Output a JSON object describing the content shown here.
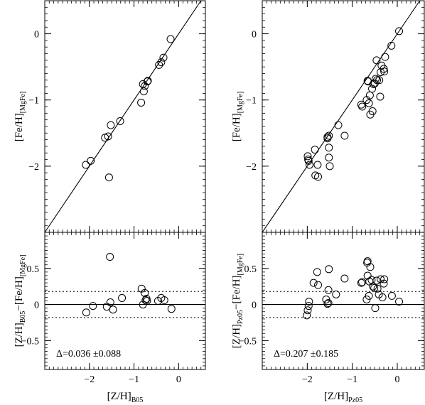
{
  "chart_data": [
    {
      "id": "b05-top",
      "type": "scatter",
      "xlim": [
        -3.0,
        0.6
      ],
      "ylim": [
        -3.0,
        0.5
      ],
      "ylabel": {
        "main": "[Fe/H]",
        "sub": "[MgFe]"
      },
      "xticks": [
        -2,
        -1,
        0
      ],
      "yticks": [
        {
          "v": 0,
          "t": "0"
        },
        {
          "v": -1,
          "t": "−1"
        },
        {
          "v": -2,
          "t": "−2"
        }
      ],
      "refline": "one-to-one",
      "points": [
        [
          -2.08,
          -1.98
        ],
        [
          -1.97,
          -1.92
        ],
        [
          -1.65,
          -1.57
        ],
        [
          -1.58,
          -1.55
        ],
        [
          -1.52,
          -1.38
        ],
        [
          -1.56,
          -2.17
        ],
        [
          -1.31,
          -1.32
        ],
        [
          -0.84,
          -1.04
        ],
        [
          -0.8,
          -0.76
        ],
        [
          -0.78,
          -0.87
        ],
        [
          -0.76,
          -0.79
        ],
        [
          -0.7,
          -0.72
        ],
        [
          -0.69,
          -0.71
        ],
        [
          -0.44,
          -0.47
        ],
        [
          -0.39,
          -0.43
        ],
        [
          -0.34,
          -0.36
        ],
        [
          -0.18,
          -0.08
        ]
      ]
    },
    {
      "id": "b05-bottom",
      "type": "scatter",
      "xlim": [
        -3.0,
        0.6
      ],
      "ylim": [
        -0.9,
        1.0
      ],
      "xlabel": {
        "main": "[Z/H]",
        "sub": "B05"
      },
      "ylabel": {
        "pre": "[Z/H]",
        "presub": "B05",
        "mid": "−[Fe/H]",
        "sub": "[MgFe]"
      },
      "xticks": [
        {
          "v": -2,
          "t": "−2"
        },
        {
          "v": -1,
          "t": "−1"
        },
        {
          "v": 0,
          "t": "0"
        }
      ],
      "yticks": [
        {
          "v": 0.5,
          "t": "0.5"
        },
        {
          "v": 0,
          "t": "0"
        },
        {
          "v": -0.5,
          "t": "−0.5"
        }
      ],
      "hlines": {
        "solid": 0.0,
        "dotted": [
          0.18,
          -0.18
        ]
      },
      "annotation": "Δ=0.036  ±0.088",
      "points": [
        [
          -2.07,
          -0.11
        ],
        [
          -1.92,
          -0.02
        ],
        [
          -1.61,
          -0.03
        ],
        [
          -1.53,
          0.03
        ],
        [
          -1.54,
          0.66
        ],
        [
          -1.47,
          -0.07
        ],
        [
          -1.27,
          0.09
        ],
        [
          -0.83,
          0.22
        ],
        [
          -0.8,
          0.0
        ],
        [
          -0.76,
          0.16
        ],
        [
          -0.74,
          0.06
        ],
        [
          -0.72,
          0.08
        ],
        [
          -0.71,
          0.05
        ],
        [
          -0.46,
          0.05
        ],
        [
          -0.39,
          0.09
        ],
        [
          -0.32,
          0.06
        ],
        [
          -0.16,
          -0.06
        ]
      ]
    },
    {
      "id": "pz05-top",
      "type": "scatter",
      "xlim": [
        -3.0,
        0.6
      ],
      "ylim": [
        -3.0,
        0.5
      ],
      "ylabel": {
        "main": "[Fe/H]",
        "sub": "[MgFe]"
      },
      "xticks": [
        -2,
        -1,
        0
      ],
      "yticks": [
        {
          "v": 0,
          "t": "0"
        },
        {
          "v": -1,
          "t": "−1"
        },
        {
          "v": -2,
          "t": "−2"
        }
      ],
      "refline": "one-to-one",
      "points": [
        [
          -1.99,
          -1.85
        ],
        [
          -1.98,
          -1.9
        ],
        [
          -1.97,
          -1.92
        ],
        [
          -1.95,
          -1.98
        ],
        [
          -1.83,
          -1.75
        ],
        [
          -1.82,
          -2.14
        ],
        [
          -1.76,
          -2.16
        ],
        [
          -1.77,
          -1.98
        ],
        [
          -1.55,
          -1.56
        ],
        [
          -1.55,
          -1.58
        ],
        [
          -1.52,
          -1.54
        ],
        [
          -1.52,
          -1.72
        ],
        [
          -1.52,
          -1.87
        ],
        [
          -1.5,
          -2.0
        ],
        [
          -1.31,
          -1.38
        ],
        [
          -1.17,
          -1.54
        ],
        [
          -0.8,
          -1.07
        ],
        [
          -0.78,
          -1.1
        ],
        [
          -0.68,
          -1.0
        ],
        [
          -0.66,
          -0.71
        ],
        [
          -0.65,
          -0.72
        ],
        [
          -0.63,
          -1.05
        ],
        [
          -0.61,
          -0.93
        ],
        [
          -0.6,
          -1.22
        ],
        [
          -0.56,
          -0.83
        ],
        [
          -0.55,
          -1.17
        ],
        [
          -0.53,
          -0.76
        ],
        [
          -0.5,
          -0.75
        ],
        [
          -0.48,
          -0.68
        ],
        [
          -0.46,
          -0.4
        ],
        [
          -0.45,
          -0.7
        ],
        [
          -0.4,
          -0.7
        ],
        [
          -0.38,
          -0.95
        ],
        [
          -0.37,
          -0.58
        ],
        [
          -0.35,
          -0.48
        ],
        [
          -0.3,
          -0.53
        ],
        [
          -0.29,
          -0.57
        ],
        [
          -0.27,
          -0.35
        ],
        [
          -0.13,
          -0.18
        ],
        [
          0.04,
          0.04
        ]
      ]
    },
    {
      "id": "pz05-bottom",
      "type": "scatter",
      "xlim": [
        -3.0,
        0.6
      ],
      "ylim": [
        -0.9,
        1.0
      ],
      "xlabel": {
        "main": "[Z/H]",
        "sub": "Pz05"
      },
      "ylabel": {
        "pre": "[Z/H]",
        "presub": "Pz05",
        "mid": "−[Fe/H]",
        "sub": "[MgFe]"
      },
      "xticks": [
        {
          "v": -2,
          "t": "−2"
        },
        {
          "v": -1,
          "t": "−1"
        },
        {
          "v": 0,
          "t": "0"
        }
      ],
      "yticks": [
        {
          "v": 0.5,
          "t": "0.5"
        },
        {
          "v": 0,
          "t": "0"
        },
        {
          "v": -0.5,
          "t": "−0.5"
        }
      ],
      "hlines": {
        "solid": 0.0,
        "dotted": [
          0.18,
          -0.18
        ]
      },
      "annotation": "Δ=0.207  ±0.185",
      "points": [
        [
          -2.01,
          -0.15
        ],
        [
          -1.99,
          -0.08
        ],
        [
          -1.97,
          -0.02
        ],
        [
          -1.96,
          0.04
        ],
        [
          -1.86,
          0.3
        ],
        [
          -1.78,
          0.45
        ],
        [
          -1.76,
          0.27
        ],
        [
          -1.58,
          0.07
        ],
        [
          -1.55,
          0.01
        ],
        [
          -1.53,
          0.02
        ],
        [
          -1.53,
          0.2
        ],
        [
          -1.52,
          0.49
        ],
        [
          -1.36,
          0.14
        ],
        [
          -1.17,
          0.36
        ],
        [
          -0.8,
          0.3
        ],
        [
          -0.78,
          0.31
        ],
        [
          -0.68,
          0.07
        ],
        [
          -0.67,
          0.58
        ],
        [
          -0.66,
          0.6
        ],
        [
          -0.66,
          0.4
        ],
        [
          -0.63,
          0.12
        ],
        [
          -0.62,
          0.32
        ],
        [
          -0.6,
          0.52
        ],
        [
          -0.57,
          0.34
        ],
        [
          -0.54,
          0.25
        ],
        [
          -0.51,
          0.23
        ],
        [
          -0.49,
          -0.05
        ],
        [
          -0.46,
          0.33
        ],
        [
          -0.44,
          0.22
        ],
        [
          -0.41,
          0.14
        ],
        [
          -0.37,
          0.35
        ],
        [
          -0.33,
          0.1
        ],
        [
          -0.3,
          0.29
        ],
        [
          -0.29,
          0.35
        ],
        [
          -0.12,
          0.12
        ],
        [
          0.04,
          0.04
        ]
      ]
    }
  ]
}
